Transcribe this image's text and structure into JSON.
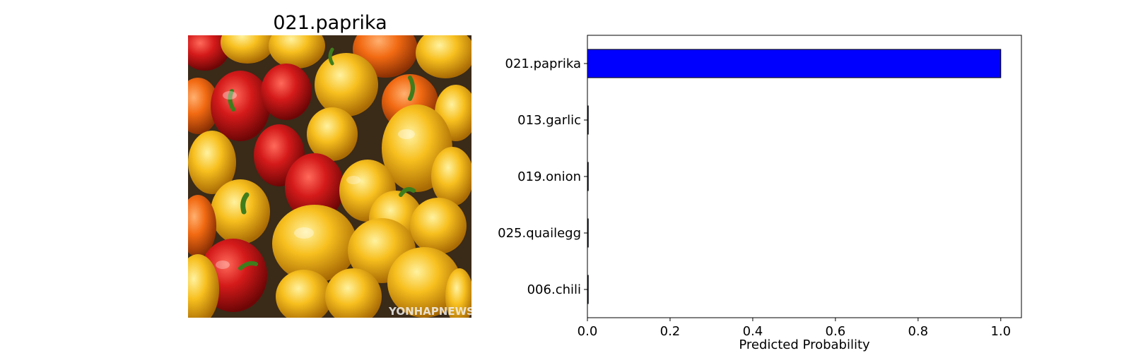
{
  "image_panel": {
    "title": "021.paprika",
    "watermark": "YONHAPNEWS"
  },
  "colors": {
    "bar_fill": "#0000ff",
    "bar_edge": "#000000",
    "axes": "#000000",
    "background": "#ffffff"
  },
  "chart_data": {
    "type": "bar",
    "orientation": "horizontal",
    "categories": [
      "021.paprika",
      "013.garlic",
      "019.onion",
      "025.quailegg",
      "006.chili"
    ],
    "values": [
      1.0,
      0.0,
      0.0,
      0.0,
      0.0
    ],
    "xlabel": "Predicted Probability",
    "ylabel": "",
    "xlim": [
      0.0,
      1.05
    ],
    "xticks": [
      "0.0",
      "0.2",
      "0.4",
      "0.6",
      "0.8",
      "1.0"
    ],
    "grid": false
  }
}
